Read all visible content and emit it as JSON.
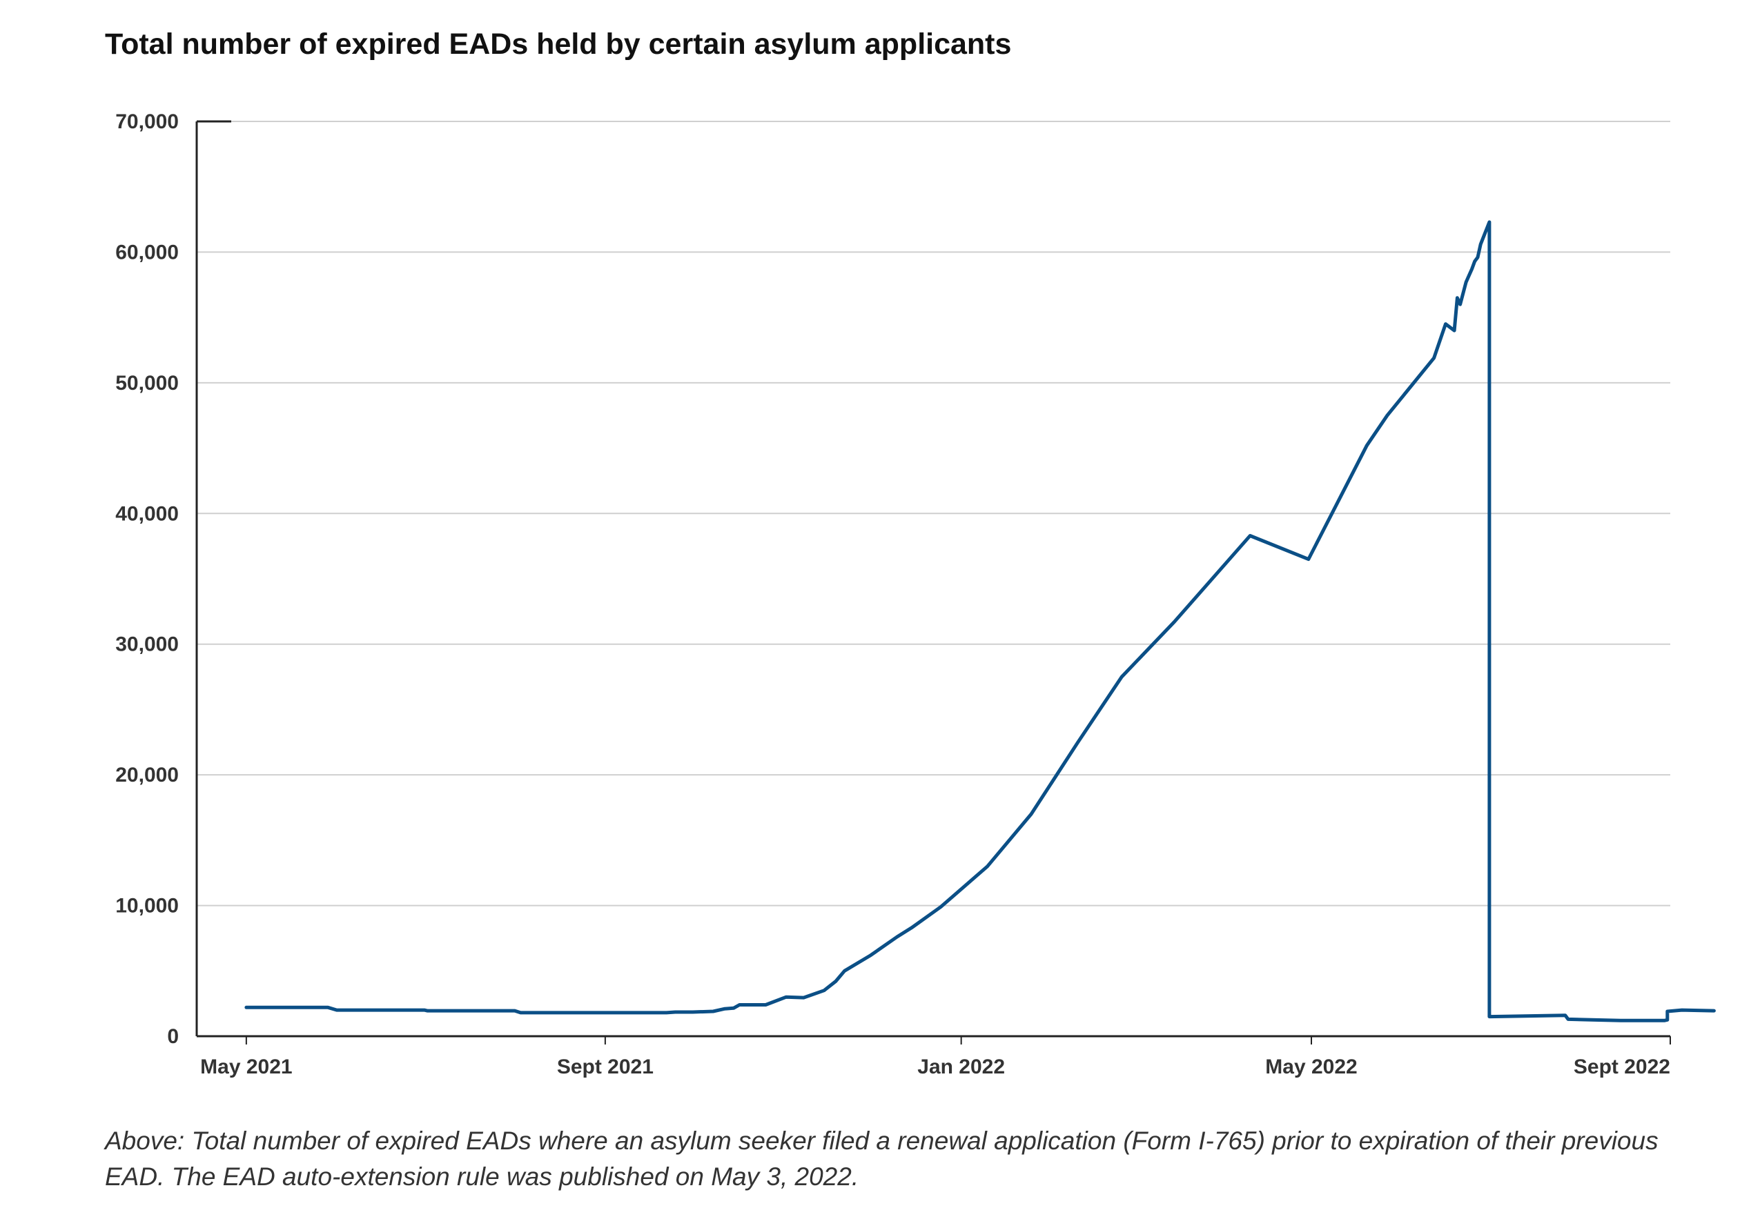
{
  "chart_data": {
    "type": "line",
    "title": "Total number of expired EADs held by certain asylum applicants",
    "xlabel": "",
    "ylabel": "",
    "ylim": [
      0,
      70000
    ],
    "yticks": [
      0,
      10000,
      20000,
      30000,
      40000,
      50000,
      60000,
      70000
    ],
    "ytick_labels": [
      "0",
      "10,000",
      "20,000",
      "30,000",
      "40,000",
      "50,000",
      "60,000",
      "70,000"
    ],
    "xlim": [
      "2021-04-14",
      "2022-09-01"
    ],
    "xticks": [
      "2021-05-01",
      "2021-09-01",
      "2022-01-01",
      "2022-05-01",
      "2022-09-01"
    ],
    "xtick_labels": [
      "May 2021",
      "Sept 2021",
      "Jan 2022",
      "May 2022",
      "Sept 2022"
    ],
    "grid": "horizontal",
    "legend": "none",
    "series": [
      {
        "color": "#0b4f86",
        "points": [
          [
            "2021-05-01",
            2200
          ],
          [
            "2021-05-15",
            2200
          ],
          [
            "2021-05-29",
            2200
          ],
          [
            "2021-06-01",
            2000
          ],
          [
            "2021-06-15",
            2000
          ],
          [
            "2021-07-01",
            2000
          ],
          [
            "2021-07-02",
            1950
          ],
          [
            "2021-07-15",
            1950
          ],
          [
            "2021-08-01",
            1950
          ],
          [
            "2021-08-03",
            1800
          ],
          [
            "2021-08-15",
            1800
          ],
          [
            "2021-09-01",
            1800
          ],
          [
            "2021-09-10",
            1800
          ],
          [
            "2021-09-22",
            1800
          ],
          [
            "2021-09-25",
            1850
          ],
          [
            "2021-10-01",
            1850
          ],
          [
            "2021-10-08",
            1900
          ],
          [
            "2021-10-12",
            2100
          ],
          [
            "2021-10-15",
            2150
          ],
          [
            "2021-10-17",
            2400
          ],
          [
            "2021-10-26",
            2400
          ],
          [
            "2021-11-02",
            3000
          ],
          [
            "2021-11-08",
            2950
          ],
          [
            "2021-11-15",
            3500
          ],
          [
            "2021-11-19",
            4200
          ],
          [
            "2021-11-22",
            5000
          ],
          [
            "2021-12-01",
            6200
          ],
          [
            "2021-12-10",
            7600
          ],
          [
            "2021-12-15",
            8300
          ],
          [
            "2021-12-25",
            9900
          ],
          [
            "2022-01-10",
            13000
          ],
          [
            "2022-01-25",
            17000
          ],
          [
            "2022-02-10",
            22500
          ],
          [
            "2022-02-25",
            27500
          ],
          [
            "2022-03-15",
            31700
          ],
          [
            "2022-04-10",
            38300
          ],
          [
            "2022-04-30",
            36500
          ],
          [
            "2022-05-20",
            45200
          ],
          [
            "2022-05-27",
            47500
          ],
          [
            "2022-06-12",
            51900
          ],
          [
            "2022-06-16",
            54500
          ],
          [
            "2022-06-19",
            54000
          ],
          [
            "2022-06-20",
            56500
          ],
          [
            "2022-06-21",
            56000
          ],
          [
            "2022-06-23",
            57700
          ],
          [
            "2022-06-24",
            58200
          ],
          [
            "2022-06-25",
            58700
          ],
          [
            "2022-06-26",
            59300
          ],
          [
            "2022-06-27",
            59600
          ],
          [
            "2022-06-28",
            60600
          ],
          [
            "2022-07-01",
            62300
          ],
          [
            "2022-07-01",
            1500
          ],
          [
            "2022-07-15",
            1550
          ],
          [
            "2022-07-27",
            1600
          ],
          [
            "2022-07-28",
            1300
          ],
          [
            "2022-08-05",
            1250
          ],
          [
            "2022-08-15",
            1200
          ],
          [
            "2022-08-30",
            1200
          ],
          [
            "2022-08-31",
            1250
          ],
          [
            "2022-08-31",
            1900
          ],
          [
            "2022-09-05",
            2000
          ],
          [
            "2022-09-16",
            1950
          ]
        ]
      }
    ]
  },
  "caption": "Above: Total number of expired EADs where an asylum seeker filed a renewal application (Form I-765) prior to expiration of their previous EAD. The EAD auto-extension rule was published on May 3, 2022."
}
